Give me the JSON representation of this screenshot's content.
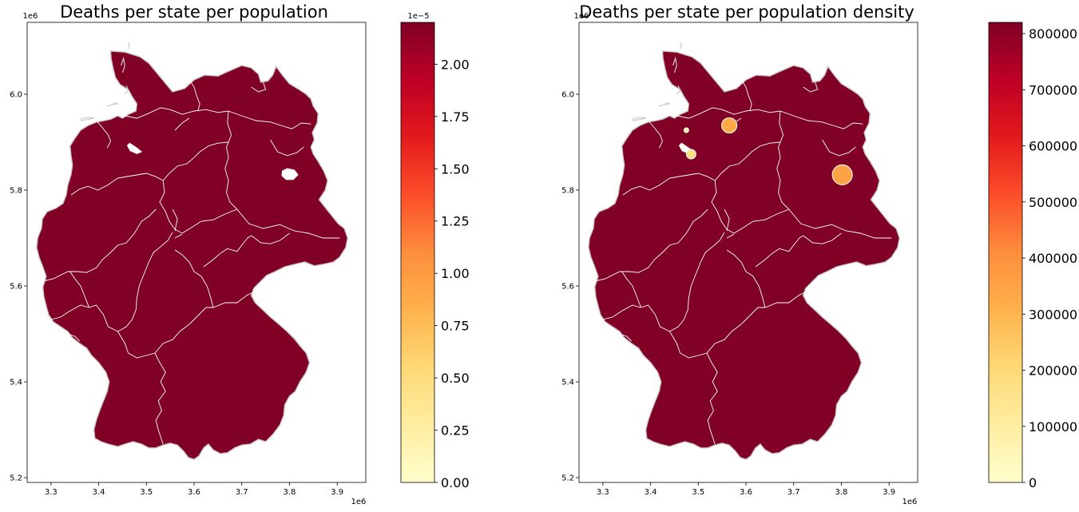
{
  "figure": {
    "colormap": [
      "#ffffcc",
      "#ffeda0",
      "#fed976",
      "#feb24c",
      "#fd8d3c",
      "#fc4e2a",
      "#e31a1c",
      "#bd0026",
      "#800026"
    ],
    "state_border_color": "#ffffff",
    "outline_color": "#c8c8c8"
  },
  "chart_data": [
    {
      "type": "choropleth-map",
      "title": "Deaths per state per population",
      "x_ticks": [
        "3.3",
        "3.4",
        "3.5",
        "3.6",
        "3.7",
        "3.8",
        "3.9"
      ],
      "x_tick_values": [
        3.3,
        3.4,
        3.5,
        3.6,
        3.7,
        3.8,
        3.9
      ],
      "x_offset": "1e6",
      "xlim": [
        3.25,
        3.96
      ],
      "y_ticks": [
        "5.2",
        "5.4",
        "5.6",
        "5.8",
        "6.0"
      ],
      "y_tick_values": [
        5.2,
        5.4,
        5.6,
        5.8,
        6.0
      ],
      "y_offset": "1e6",
      "ylim": [
        5.19,
        6.15
      ],
      "colorbar": {
        "ticks": [
          "0.00",
          "0.25",
          "0.50",
          "0.75",
          "1.00",
          "1.25",
          "1.50",
          "1.75",
          "2.00"
        ],
        "tick_values": [
          0,
          0.25,
          0.5,
          0.75,
          1.0,
          1.25,
          1.5,
          1.75,
          2.0
        ],
        "offset": "1e−5",
        "range": [
          0,
          2.2
        ]
      },
      "highlight_regions": []
    },
    {
      "type": "choropleth-map",
      "title": "Deaths per state per population density",
      "x_ticks": [
        "3.3",
        "3.4",
        "3.5",
        "3.6",
        "3.7",
        "3.8",
        "3.9"
      ],
      "x_tick_values": [
        3.3,
        3.4,
        3.5,
        3.6,
        3.7,
        3.8,
        3.9
      ],
      "x_offset": "1e6",
      "xlim": [
        3.25,
        3.96
      ],
      "y_ticks": [
        "5.2",
        "5.4",
        "5.6",
        "5.8",
        "6.0"
      ],
      "y_tick_values": [
        5.2,
        5.4,
        5.6,
        5.8,
        6.0
      ],
      "y_offset": "1e6",
      "ylim": [
        5.19,
        6.15
      ],
      "colorbar": {
        "ticks": [
          "0",
          "100000",
          "200000",
          "300000",
          "400000",
          "500000",
          "600000",
          "700000",
          "800000"
        ],
        "tick_values": [
          0,
          100000,
          200000,
          300000,
          400000,
          500000,
          600000,
          700000,
          800000
        ],
        "offset": "",
        "range": [
          0,
          820000
        ]
      },
      "highlight_regions": [
        {
          "x": 3.565,
          "y": 5.935,
          "r": 0.016,
          "value": 330000
        },
        {
          "x": 3.802,
          "y": 5.832,
          "r": 0.021,
          "value": 350000
        },
        {
          "x": 3.485,
          "y": 5.875,
          "r": 0.01,
          "value": 170000
        },
        {
          "x": 3.475,
          "y": 5.925,
          "r": 0.004,
          "value": 120000
        }
      ]
    }
  ]
}
